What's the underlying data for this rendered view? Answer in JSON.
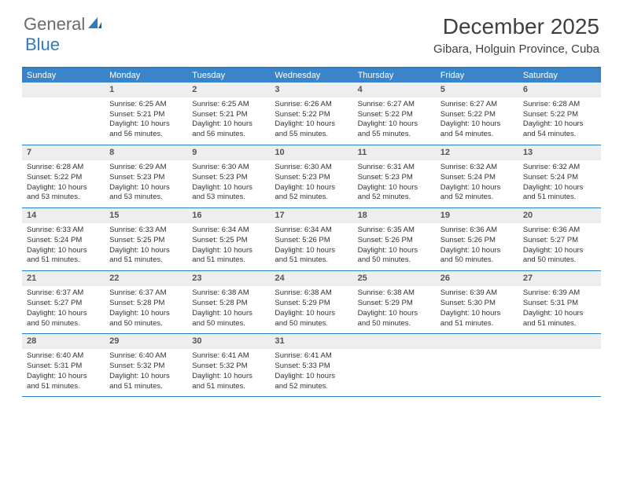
{
  "logo": {
    "general": "General",
    "blue": "Blue"
  },
  "title": "December 2025",
  "location": "Gibara, Holguin Province, Cuba",
  "accent_color": "#3a85c9",
  "border_color": "#2f7bbf",
  "daynum_bg": "#eeeeee",
  "day_headers": [
    "Sunday",
    "Monday",
    "Tuesday",
    "Wednesday",
    "Thursday",
    "Friday",
    "Saturday"
  ],
  "weeks": [
    [
      {
        "num": "",
        "sunrise": "",
        "sunset": "",
        "daylight": ""
      },
      {
        "num": "1",
        "sunrise": "Sunrise: 6:25 AM",
        "sunset": "Sunset: 5:21 PM",
        "daylight": "Daylight: 10 hours and 56 minutes."
      },
      {
        "num": "2",
        "sunrise": "Sunrise: 6:25 AM",
        "sunset": "Sunset: 5:21 PM",
        "daylight": "Daylight: 10 hours and 56 minutes."
      },
      {
        "num": "3",
        "sunrise": "Sunrise: 6:26 AM",
        "sunset": "Sunset: 5:22 PM",
        "daylight": "Daylight: 10 hours and 55 minutes."
      },
      {
        "num": "4",
        "sunrise": "Sunrise: 6:27 AM",
        "sunset": "Sunset: 5:22 PM",
        "daylight": "Daylight: 10 hours and 55 minutes."
      },
      {
        "num": "5",
        "sunrise": "Sunrise: 6:27 AM",
        "sunset": "Sunset: 5:22 PM",
        "daylight": "Daylight: 10 hours and 54 minutes."
      },
      {
        "num": "6",
        "sunrise": "Sunrise: 6:28 AM",
        "sunset": "Sunset: 5:22 PM",
        "daylight": "Daylight: 10 hours and 54 minutes."
      }
    ],
    [
      {
        "num": "7",
        "sunrise": "Sunrise: 6:28 AM",
        "sunset": "Sunset: 5:22 PM",
        "daylight": "Daylight: 10 hours and 53 minutes."
      },
      {
        "num": "8",
        "sunrise": "Sunrise: 6:29 AM",
        "sunset": "Sunset: 5:23 PM",
        "daylight": "Daylight: 10 hours and 53 minutes."
      },
      {
        "num": "9",
        "sunrise": "Sunrise: 6:30 AM",
        "sunset": "Sunset: 5:23 PM",
        "daylight": "Daylight: 10 hours and 53 minutes."
      },
      {
        "num": "10",
        "sunrise": "Sunrise: 6:30 AM",
        "sunset": "Sunset: 5:23 PM",
        "daylight": "Daylight: 10 hours and 52 minutes."
      },
      {
        "num": "11",
        "sunrise": "Sunrise: 6:31 AM",
        "sunset": "Sunset: 5:23 PM",
        "daylight": "Daylight: 10 hours and 52 minutes."
      },
      {
        "num": "12",
        "sunrise": "Sunrise: 6:32 AM",
        "sunset": "Sunset: 5:24 PM",
        "daylight": "Daylight: 10 hours and 52 minutes."
      },
      {
        "num": "13",
        "sunrise": "Sunrise: 6:32 AM",
        "sunset": "Sunset: 5:24 PM",
        "daylight": "Daylight: 10 hours and 51 minutes."
      }
    ],
    [
      {
        "num": "14",
        "sunrise": "Sunrise: 6:33 AM",
        "sunset": "Sunset: 5:24 PM",
        "daylight": "Daylight: 10 hours and 51 minutes."
      },
      {
        "num": "15",
        "sunrise": "Sunrise: 6:33 AM",
        "sunset": "Sunset: 5:25 PM",
        "daylight": "Daylight: 10 hours and 51 minutes."
      },
      {
        "num": "16",
        "sunrise": "Sunrise: 6:34 AM",
        "sunset": "Sunset: 5:25 PM",
        "daylight": "Daylight: 10 hours and 51 minutes."
      },
      {
        "num": "17",
        "sunrise": "Sunrise: 6:34 AM",
        "sunset": "Sunset: 5:26 PM",
        "daylight": "Daylight: 10 hours and 51 minutes."
      },
      {
        "num": "18",
        "sunrise": "Sunrise: 6:35 AM",
        "sunset": "Sunset: 5:26 PM",
        "daylight": "Daylight: 10 hours and 50 minutes."
      },
      {
        "num": "19",
        "sunrise": "Sunrise: 6:36 AM",
        "sunset": "Sunset: 5:26 PM",
        "daylight": "Daylight: 10 hours and 50 minutes."
      },
      {
        "num": "20",
        "sunrise": "Sunrise: 6:36 AM",
        "sunset": "Sunset: 5:27 PM",
        "daylight": "Daylight: 10 hours and 50 minutes."
      }
    ],
    [
      {
        "num": "21",
        "sunrise": "Sunrise: 6:37 AM",
        "sunset": "Sunset: 5:27 PM",
        "daylight": "Daylight: 10 hours and 50 minutes."
      },
      {
        "num": "22",
        "sunrise": "Sunrise: 6:37 AM",
        "sunset": "Sunset: 5:28 PM",
        "daylight": "Daylight: 10 hours and 50 minutes."
      },
      {
        "num": "23",
        "sunrise": "Sunrise: 6:38 AM",
        "sunset": "Sunset: 5:28 PM",
        "daylight": "Daylight: 10 hours and 50 minutes."
      },
      {
        "num": "24",
        "sunrise": "Sunrise: 6:38 AM",
        "sunset": "Sunset: 5:29 PM",
        "daylight": "Daylight: 10 hours and 50 minutes."
      },
      {
        "num": "25",
        "sunrise": "Sunrise: 6:38 AM",
        "sunset": "Sunset: 5:29 PM",
        "daylight": "Daylight: 10 hours and 50 minutes."
      },
      {
        "num": "26",
        "sunrise": "Sunrise: 6:39 AM",
        "sunset": "Sunset: 5:30 PM",
        "daylight": "Daylight: 10 hours and 51 minutes."
      },
      {
        "num": "27",
        "sunrise": "Sunrise: 6:39 AM",
        "sunset": "Sunset: 5:31 PM",
        "daylight": "Daylight: 10 hours and 51 minutes."
      }
    ],
    [
      {
        "num": "28",
        "sunrise": "Sunrise: 6:40 AM",
        "sunset": "Sunset: 5:31 PM",
        "daylight": "Daylight: 10 hours and 51 minutes."
      },
      {
        "num": "29",
        "sunrise": "Sunrise: 6:40 AM",
        "sunset": "Sunset: 5:32 PM",
        "daylight": "Daylight: 10 hours and 51 minutes."
      },
      {
        "num": "30",
        "sunrise": "Sunrise: 6:41 AM",
        "sunset": "Sunset: 5:32 PM",
        "daylight": "Daylight: 10 hours and 51 minutes."
      },
      {
        "num": "31",
        "sunrise": "Sunrise: 6:41 AM",
        "sunset": "Sunset: 5:33 PM",
        "daylight": "Daylight: 10 hours and 52 minutes."
      },
      {
        "num": "",
        "sunrise": "",
        "sunset": "",
        "daylight": ""
      },
      {
        "num": "",
        "sunrise": "",
        "sunset": "",
        "daylight": ""
      },
      {
        "num": "",
        "sunrise": "",
        "sunset": "",
        "daylight": ""
      }
    ]
  ]
}
